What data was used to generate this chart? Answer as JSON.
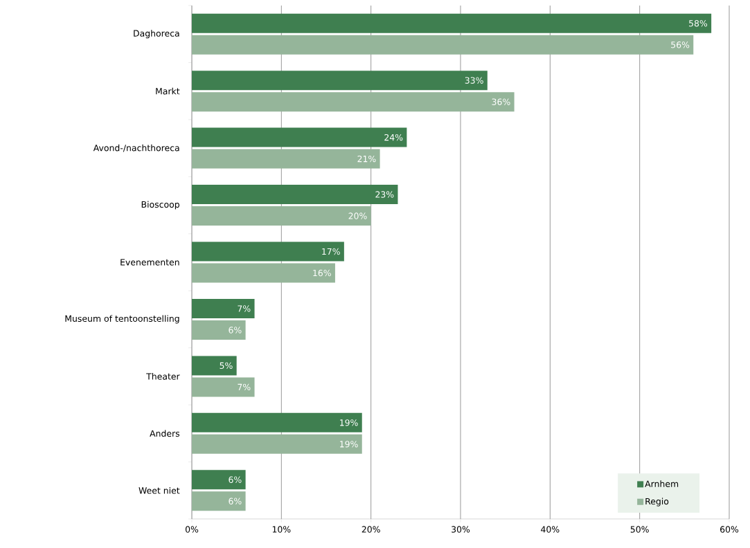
{
  "chart_data": {
    "type": "bar",
    "orientation": "horizontal",
    "categories": [
      "Daghoreca",
      "Markt",
      "Avond-/nachthoreca",
      "Bioscoop",
      "Evenementen",
      "Museum of tentoonstelling",
      "Theater",
      "Anders",
      "Weet niet"
    ],
    "series": [
      {
        "name": "Arnhem",
        "color": "#3f7f50",
        "values": [
          58,
          33,
          24,
          23,
          17,
          7,
          5,
          19,
          6
        ],
        "value_labels": [
          "58%",
          "33%",
          "24%",
          "23%",
          "17%",
          "7%",
          "5%",
          "19%",
          "6%"
        ]
      },
      {
        "name": "Regio",
        "color": "#95b59a",
        "values": [
          56,
          36,
          21,
          20,
          16,
          6,
          7,
          19,
          6
        ],
        "value_labels": [
          "56%",
          "36%",
          "21%",
          "20%",
          "16%",
          "6%",
          "7%",
          "19%",
          "6%"
        ]
      }
    ],
    "xlim": [
      0,
      60
    ],
    "xticks": [
      {
        "value": 0,
        "label": "0%"
      },
      {
        "value": 10,
        "label": "10%"
      },
      {
        "value": 20,
        "label": "20%"
      },
      {
        "value": 30,
        "label": "30%"
      },
      {
        "value": 40,
        "label": "40%"
      },
      {
        "value": 50,
        "label": "50%"
      },
      {
        "value": 60,
        "label": "60%"
      }
    ],
    "grid": "x",
    "legend": "bottom right"
  }
}
